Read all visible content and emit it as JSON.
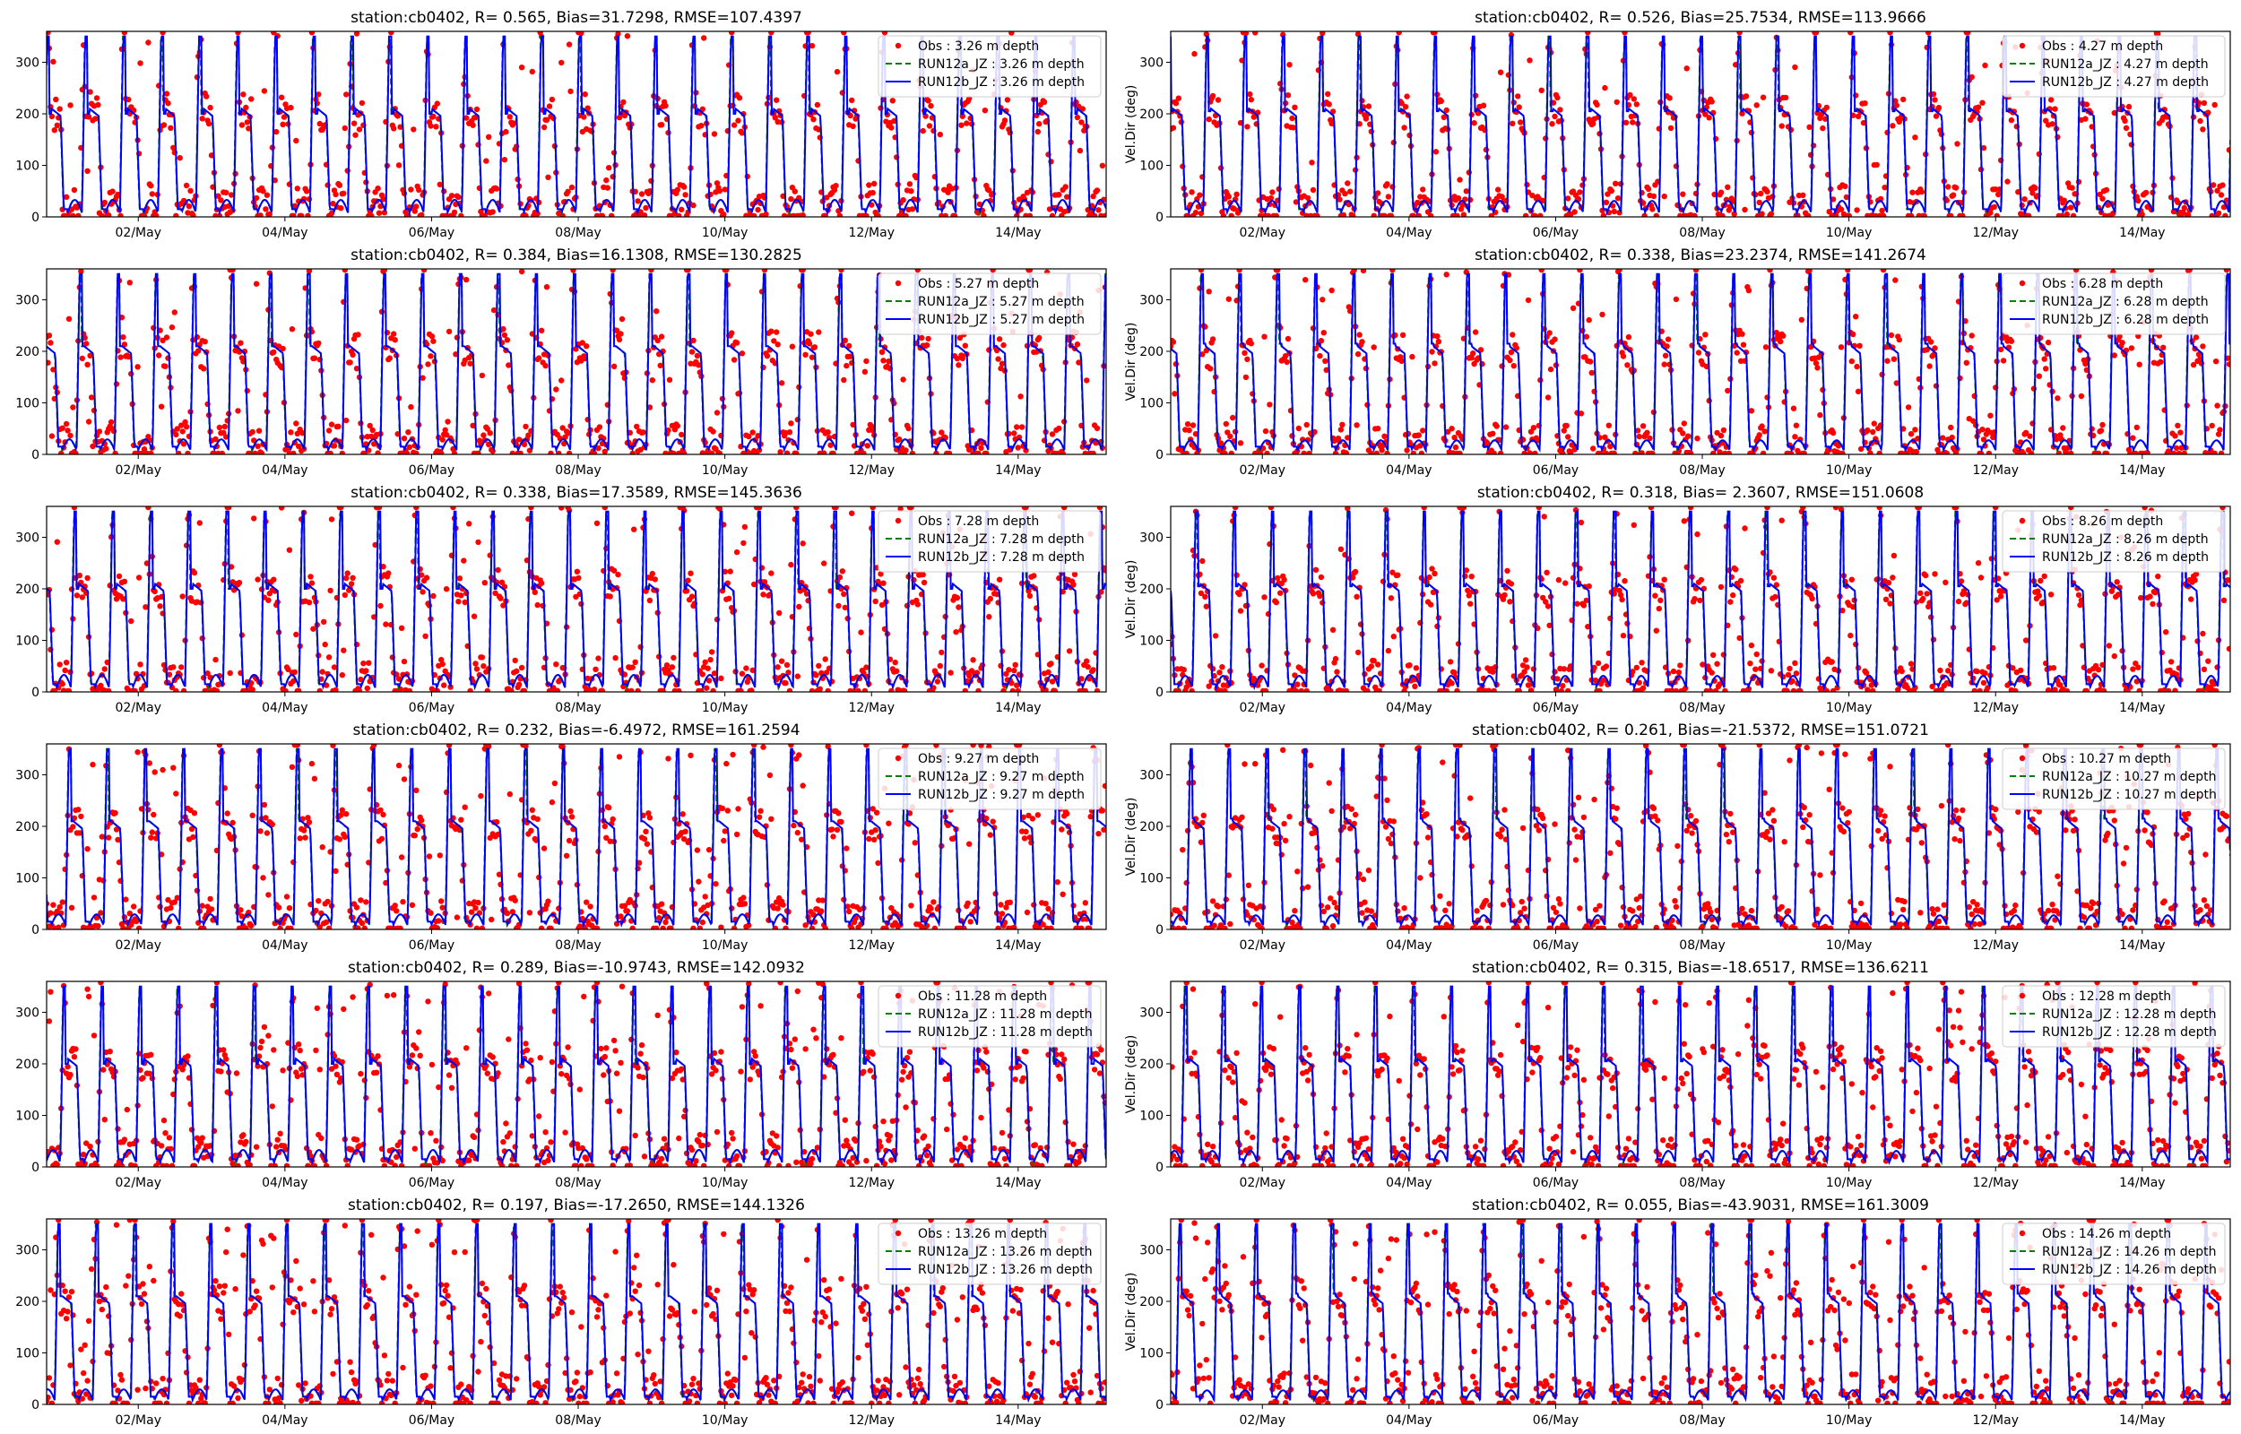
{
  "chart_data": [
    {
      "type": "scatter+line",
      "title": "station:cb0402, R= 0.565, Bias=31.7298, RMSE=107.4397",
      "ylabel": "",
      "ylim": [
        0,
        360
      ],
      "yticks": [
        0,
        100,
        200,
        300
      ],
      "xticks": [
        "02/May",
        "04/May",
        "06/May",
        "08/May",
        "10/May",
        "12/May",
        "14/May"
      ],
      "legend": [
        "Obs : 3.26 m depth",
        "RUN12a_JZ : 3.26 m depth",
        "RUN12b_JZ : 3.26 m depth"
      ],
      "legend_position": "upper-right",
      "series": [
        {
          "name": "Obs : 3.26 m depth",
          "style": "red dots"
        },
        {
          "name": "RUN12a_JZ : 3.26 m depth",
          "style": "green dashed"
        },
        {
          "name": "RUN12b_JZ : 3.26 m depth",
          "style": "blue solid"
        }
      ]
    },
    {
      "type": "scatter+line",
      "title": "station:cb0402, R= 0.526, Bias=25.7534, RMSE=113.9666",
      "ylabel": "Vel.Dir (deg)",
      "ylim": [
        0,
        360
      ],
      "yticks": [
        0,
        100,
        200,
        300
      ],
      "xticks": [
        "02/May",
        "04/May",
        "06/May",
        "08/May",
        "10/May",
        "12/May",
        "14/May"
      ],
      "legend": [
        "Obs : 4.27 m depth",
        "RUN12a_JZ : 4.27 m depth",
        "RUN12b_JZ : 4.27 m depth"
      ],
      "legend_position": "upper-right"
    },
    {
      "type": "scatter+line",
      "title": "station:cb0402, R= 0.384, Bias=16.1308, RMSE=130.2825",
      "ylabel": "",
      "ylim": [
        0,
        360
      ],
      "yticks": [
        0,
        100,
        200,
        300
      ],
      "xticks": [
        "02/May",
        "04/May",
        "06/May",
        "08/May",
        "10/May",
        "12/May",
        "14/May"
      ],
      "legend": [
        "Obs : 5.27 m depth",
        "RUN12a_JZ : 5.27 m depth",
        "RUN12b_JZ : 5.27 m depth"
      ],
      "legend_position": "upper-right"
    },
    {
      "type": "scatter+line",
      "title": "station:cb0402, R= 0.338, Bias=23.2374, RMSE=141.2674",
      "ylabel": "Vel.Dir (deg)",
      "ylim": [
        0,
        360
      ],
      "yticks": [
        0,
        100,
        200,
        300
      ],
      "xticks": [
        "02/May",
        "04/May",
        "06/May",
        "08/May",
        "10/May",
        "12/May",
        "14/May"
      ],
      "legend": [
        "Obs : 6.28 m depth",
        "RUN12a_JZ : 6.28 m depth",
        "RUN12b_JZ : 6.28 m depth"
      ],
      "legend_position": "upper-right"
    },
    {
      "type": "scatter+line",
      "title": "station:cb0402, R= 0.338, Bias=17.3589, RMSE=145.3636",
      "ylabel": "",
      "ylim": [
        0,
        360
      ],
      "yticks": [
        0,
        100,
        200,
        300
      ],
      "xticks": [
        "02/May",
        "04/May",
        "06/May",
        "08/May",
        "10/May",
        "12/May",
        "14/May"
      ],
      "legend": [
        "Obs : 7.28 m depth",
        "RUN12a_JZ : 7.28 m depth",
        "RUN12b_JZ : 7.28 m depth"
      ],
      "legend_position": "upper-right"
    },
    {
      "type": "scatter+line",
      "title": "station:cb0402, R= 0.318, Bias= 2.3607, RMSE=151.0608",
      "ylabel": "Vel.Dir (deg)",
      "ylim": [
        0,
        360
      ],
      "yticks": [
        0,
        100,
        200,
        300
      ],
      "xticks": [
        "02/May",
        "04/May",
        "06/May",
        "08/May",
        "10/May",
        "12/May",
        "14/May"
      ],
      "legend": [
        "Obs : 8.26 m depth",
        "RUN12a_JZ : 8.26 m depth",
        "RUN12b_JZ : 8.26 m depth"
      ],
      "legend_position": "upper-right"
    },
    {
      "type": "scatter+line",
      "title": "station:cb0402, R= 0.232, Bias=-6.4972, RMSE=161.2594",
      "ylabel": "",
      "ylim": [
        0,
        360
      ],
      "yticks": [
        0,
        100,
        200,
        300
      ],
      "xticks": [
        "02/May",
        "04/May",
        "06/May",
        "08/May",
        "10/May",
        "12/May",
        "14/May"
      ],
      "legend": [
        "Obs : 9.27 m depth",
        "RUN12a_JZ : 9.27 m depth",
        "RUN12b_JZ : 9.27 m depth"
      ],
      "legend_position": "upper-right"
    },
    {
      "type": "scatter+line",
      "title": "station:cb0402, R= 0.261, Bias=-21.5372, RMSE=151.0721",
      "ylabel": "Vel.Dir (deg)",
      "ylim": [
        0,
        360
      ],
      "yticks": [
        0,
        100,
        200,
        300
      ],
      "xticks": [
        "02/May",
        "04/May",
        "06/May",
        "08/May",
        "10/May",
        "12/May",
        "14/May"
      ],
      "legend": [
        "Obs : 10.27 m depth",
        "RUN12a_JZ : 10.27 m depth",
        "RUN12b_JZ : 10.27 m depth"
      ],
      "legend_position": "upper-right"
    },
    {
      "type": "scatter+line",
      "title": "station:cb0402, R= 0.289, Bias=-10.9743, RMSE=142.0932",
      "ylabel": "",
      "ylim": [
        0,
        360
      ],
      "yticks": [
        0,
        100,
        200,
        300
      ],
      "xticks": [
        "02/May",
        "04/May",
        "06/May",
        "08/May",
        "10/May",
        "12/May",
        "14/May"
      ],
      "legend": [
        "Obs : 11.28 m depth",
        "RUN12a_JZ : 11.28 m depth",
        "RUN12b_JZ : 11.28 m depth"
      ],
      "legend_position": "upper-right"
    },
    {
      "type": "scatter+line",
      "title": "station:cb0402, R= 0.315, Bias=-18.6517, RMSE=136.6211",
      "ylabel": "Vel.Dir (deg)",
      "ylim": [
        0,
        360
      ],
      "yticks": [
        0,
        100,
        200,
        300
      ],
      "xticks": [
        "02/May",
        "04/May",
        "06/May",
        "08/May",
        "10/May",
        "12/May",
        "14/May"
      ],
      "legend": [
        "Obs : 12.28 m depth",
        "RUN12a_JZ : 12.28 m depth",
        "RUN12b_JZ : 12.28 m depth"
      ],
      "legend_position": "upper-right"
    },
    {
      "type": "scatter+line",
      "title": "station:cb0402, R= 0.197, Bias=-17.2650, RMSE=144.1326",
      "ylabel": "",
      "ylim": [
        0,
        360
      ],
      "yticks": [
        0,
        100,
        200,
        300
      ],
      "xticks": [
        "02/May",
        "04/May",
        "06/May",
        "08/May",
        "10/May",
        "12/May",
        "14/May"
      ],
      "legend": [
        "Obs : 13.26 m depth",
        "RUN12a_JZ : 13.26 m depth",
        "RUN12b_JZ : 13.26 m depth"
      ],
      "legend_position": "upper-right"
    },
    {
      "type": "scatter+line",
      "title": "station:cb0402, R= 0.055, Bias=-43.9031, RMSE=161.3009",
      "ylabel": "Vel.Dir (deg)",
      "ylim": [
        0,
        360
      ],
      "yticks": [
        0,
        100,
        200,
        300
      ],
      "xticks": [
        "02/May",
        "04/May",
        "06/May",
        "08/May",
        "10/May",
        "12/May",
        "14/May"
      ],
      "legend": [
        "Obs : 14.26 m depth",
        "RUN12a_JZ : 14.26 m depth",
        "RUN12b_JZ : 14.26 m depth"
      ],
      "legend_position": "upper-right"
    }
  ],
  "colors": {
    "obs": "#ff0000",
    "run12a": "#008000",
    "run12b": "#0000ff"
  }
}
